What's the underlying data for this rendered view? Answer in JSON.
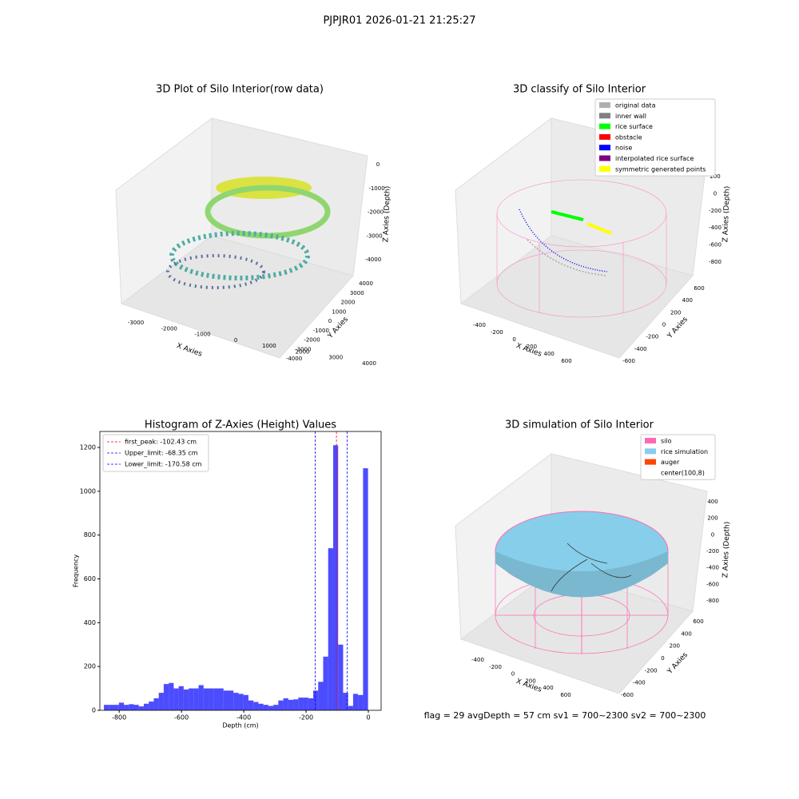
{
  "suptitle": "PJPJR01 2026-01-21 21:25:27",
  "footer": "flag = 29  avgDepth = 57 cm    sv1 = 700~2300  sv2 = 700~2300",
  "chart_data": [
    {
      "type": "scatter3d",
      "title": "3D Plot of Silo Interior(row data)",
      "xlabel": "X Axies",
      "ylabel": "Y Axies",
      "zlabel": "Z Axies (Depth)",
      "xticks": [
        -3000,
        -2000,
        -1000,
        0,
        1000,
        2000,
        3000,
        4000
      ],
      "yticks": [
        -4000,
        -3000,
        -2000,
        -1000,
        0,
        1000,
        2000,
        3000,
        4000
      ],
      "zticks": [
        0,
        -1000,
        -2000,
        -3000,
        -4000
      ]
    },
    {
      "type": "scatter3d",
      "title": "3D classify of Silo Interior",
      "xlabel": "X Axies",
      "ylabel": "Y Axies",
      "zlabel": "Z Axies (Depth)",
      "xticks": [
        -400,
        -200,
        0,
        200,
        400,
        600
      ],
      "yticks": [
        -600,
        -400,
        -200,
        0,
        200,
        400,
        600
      ],
      "zticks": [
        200,
        0,
        -200,
        -400,
        -600,
        -800
      ],
      "legend": [
        {
          "name": "original data",
          "color": "#b0b0b0"
        },
        {
          "name": "inner wall",
          "color": "#808080"
        },
        {
          "name": "rice surface",
          "color": "#00ff00"
        },
        {
          "name": "obstacle",
          "color": "#ff0000"
        },
        {
          "name": "noise",
          "color": "#0000ff"
        },
        {
          "name": "interpolated rice surface",
          "color": "#800080"
        },
        {
          "name": "symmetric generated points",
          "color": "#ffff00"
        }
      ]
    },
    {
      "type": "histogram",
      "title": "Histogram of Z-Axies (Height) Values",
      "xlabel": "Depth (cm)",
      "ylabel": "Frequency",
      "color": "#0000ff",
      "bins": [
        -849,
        -833,
        -817,
        -801,
        -785,
        -769,
        -753,
        -737,
        -721,
        -705,
        -689,
        -673,
        -657,
        -641,
        -625,
        -609,
        -593,
        -577,
        -561,
        -545,
        -529,
        -513,
        -497,
        -481,
        -465,
        -449,
        -433,
        -417,
        -401,
        -385,
        -369,
        -353,
        -337,
        -321,
        -305,
        -289,
        -273,
        -257,
        -241,
        -225,
        -209,
        -193,
        -177,
        -161,
        -145,
        -129,
        -113,
        -97,
        -81,
        -65,
        -49,
        -33,
        -17,
        -1
      ],
      "values": [
        25,
        25,
        25,
        35,
        25,
        28,
        25,
        18,
        30,
        40,
        55,
        80,
        120,
        125,
        100,
        110,
        95,
        100,
        100,
        115,
        100,
        100,
        100,
        100,
        90,
        90,
        80,
        75,
        70,
        45,
        38,
        30,
        25,
        20,
        25,
        45,
        55,
        48,
        50,
        58,
        58,
        55,
        90,
        130,
        245,
        740,
        1210,
        300,
        80,
        20,
        75,
        70,
        1105
      ],
      "xlim": [
        -862,
        41
      ],
      "ylim": [
        0,
        1273
      ],
      "xticks": [
        -800,
        -600,
        -400,
        -200,
        0
      ],
      "yticks": [
        0,
        200,
        400,
        600,
        800,
        1000,
        1200
      ],
      "vlines": [
        {
          "name": "first_peak: -102.43 cm",
          "value": -102.43,
          "color": "#ff0000"
        },
        {
          "name": "Upper_limit: -68.35 cm",
          "value": -68.35,
          "color": "#0000ff"
        },
        {
          "name": "Lower_limit: -170.58 cm",
          "value": -170.58,
          "color": "#0000ff"
        }
      ],
      "legend_loc": "upper left"
    },
    {
      "type": "scatter3d",
      "title": "3D simulation of Silo Interior",
      "xlabel": "X Axies",
      "ylabel": "Y Axies",
      "zlabel": "Z Axies (Depth)",
      "xticks": [
        -400,
        -200,
        0,
        200,
        400,
        600
      ],
      "yticks": [
        -600,
        -400,
        -200,
        0,
        200,
        400,
        600
      ],
      "zticks": [
        400,
        200,
        0,
        -200,
        -400,
        -600,
        -800
      ],
      "legend": [
        {
          "name": "silo",
          "color": "#ff69b4"
        },
        {
          "name": "rice simulation",
          "color": "#87ceeb"
        },
        {
          "name": "auger",
          "color": "#ff4500"
        },
        {
          "name": "center(100,8)",
          "color": "#ffffff"
        }
      ]
    }
  ]
}
